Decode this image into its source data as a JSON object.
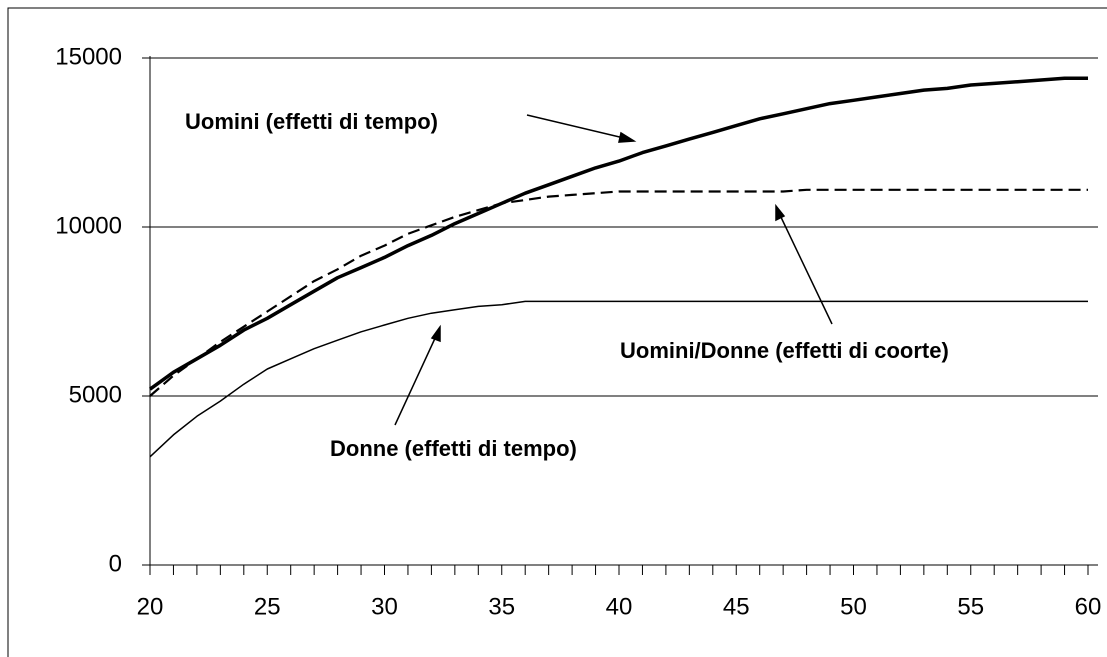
{
  "chart_data": {
    "type": "line",
    "x": [
      20,
      21,
      22,
      23,
      24,
      25,
      26,
      27,
      28,
      29,
      30,
      31,
      32,
      33,
      34,
      35,
      36,
      37,
      38,
      39,
      40,
      41,
      42,
      43,
      44,
      45,
      46,
      47,
      48,
      49,
      50,
      51,
      52,
      53,
      54,
      55,
      56,
      57,
      58,
      59,
      60
    ],
    "series": [
      {
        "name": "Uomini (effetti di tempo)",
        "color": "#000000",
        "line_width": 3.5,
        "dashed": false,
        "values": [
          5200,
          5700,
          6100,
          6500,
          6950,
          7300,
          7700,
          8100,
          8500,
          8800,
          9100,
          9450,
          9750,
          10100,
          10400,
          10700,
          11000,
          11250,
          11500,
          11750,
          11950,
          12200,
          12400,
          12600,
          12800,
          13000,
          13200,
          13350,
          13500,
          13650,
          13750,
          13850,
          13950,
          14050,
          14100,
          14200,
          14250,
          14300,
          14350,
          14400,
          14400
        ]
      },
      {
        "name": "Uomini/Donne (effetti di coorte)",
        "color": "#000000",
        "line_width": 2.2,
        "dashed": true,
        "values": [
          5000,
          5600,
          6100,
          6600,
          7050,
          7500,
          7950,
          8400,
          8750,
          9150,
          9450,
          9800,
          10050,
          10300,
          10500,
          10700,
          10800,
          10900,
          10950,
          11000,
          11050,
          11050,
          11050,
          11050,
          11050,
          11050,
          11050,
          11050,
          11100,
          11100,
          11100,
          11100,
          11100,
          11100,
          11100,
          11100,
          11100,
          11100,
          11100,
          11100,
          11100
        ]
      },
      {
        "name": "Donne (effetti di tempo)",
        "color": "#000000",
        "line_width": 1.5,
        "dashed": false,
        "values": [
          3200,
          3850,
          4400,
          4850,
          5350,
          5800,
          6100,
          6400,
          6650,
          6900,
          7100,
          7300,
          7450,
          7550,
          7650,
          7700,
          7800,
          7800,
          7800,
          7800,
          7800,
          7800,
          7800,
          7800,
          7800,
          7800,
          7800,
          7800,
          7800,
          7800,
          7800,
          7800,
          7800,
          7800,
          7800,
          7800,
          7800,
          7800,
          7800,
          7800,
          7800
        ]
      }
    ],
    "xlim": [
      20,
      60
    ],
    "xticks": [
      20,
      25,
      30,
      35,
      40,
      45,
      50,
      55,
      60
    ],
    "ylim": [
      0,
      15000
    ],
    "yticks": [
      0,
      5000,
      10000,
      15000
    ],
    "grid": true
  }
}
